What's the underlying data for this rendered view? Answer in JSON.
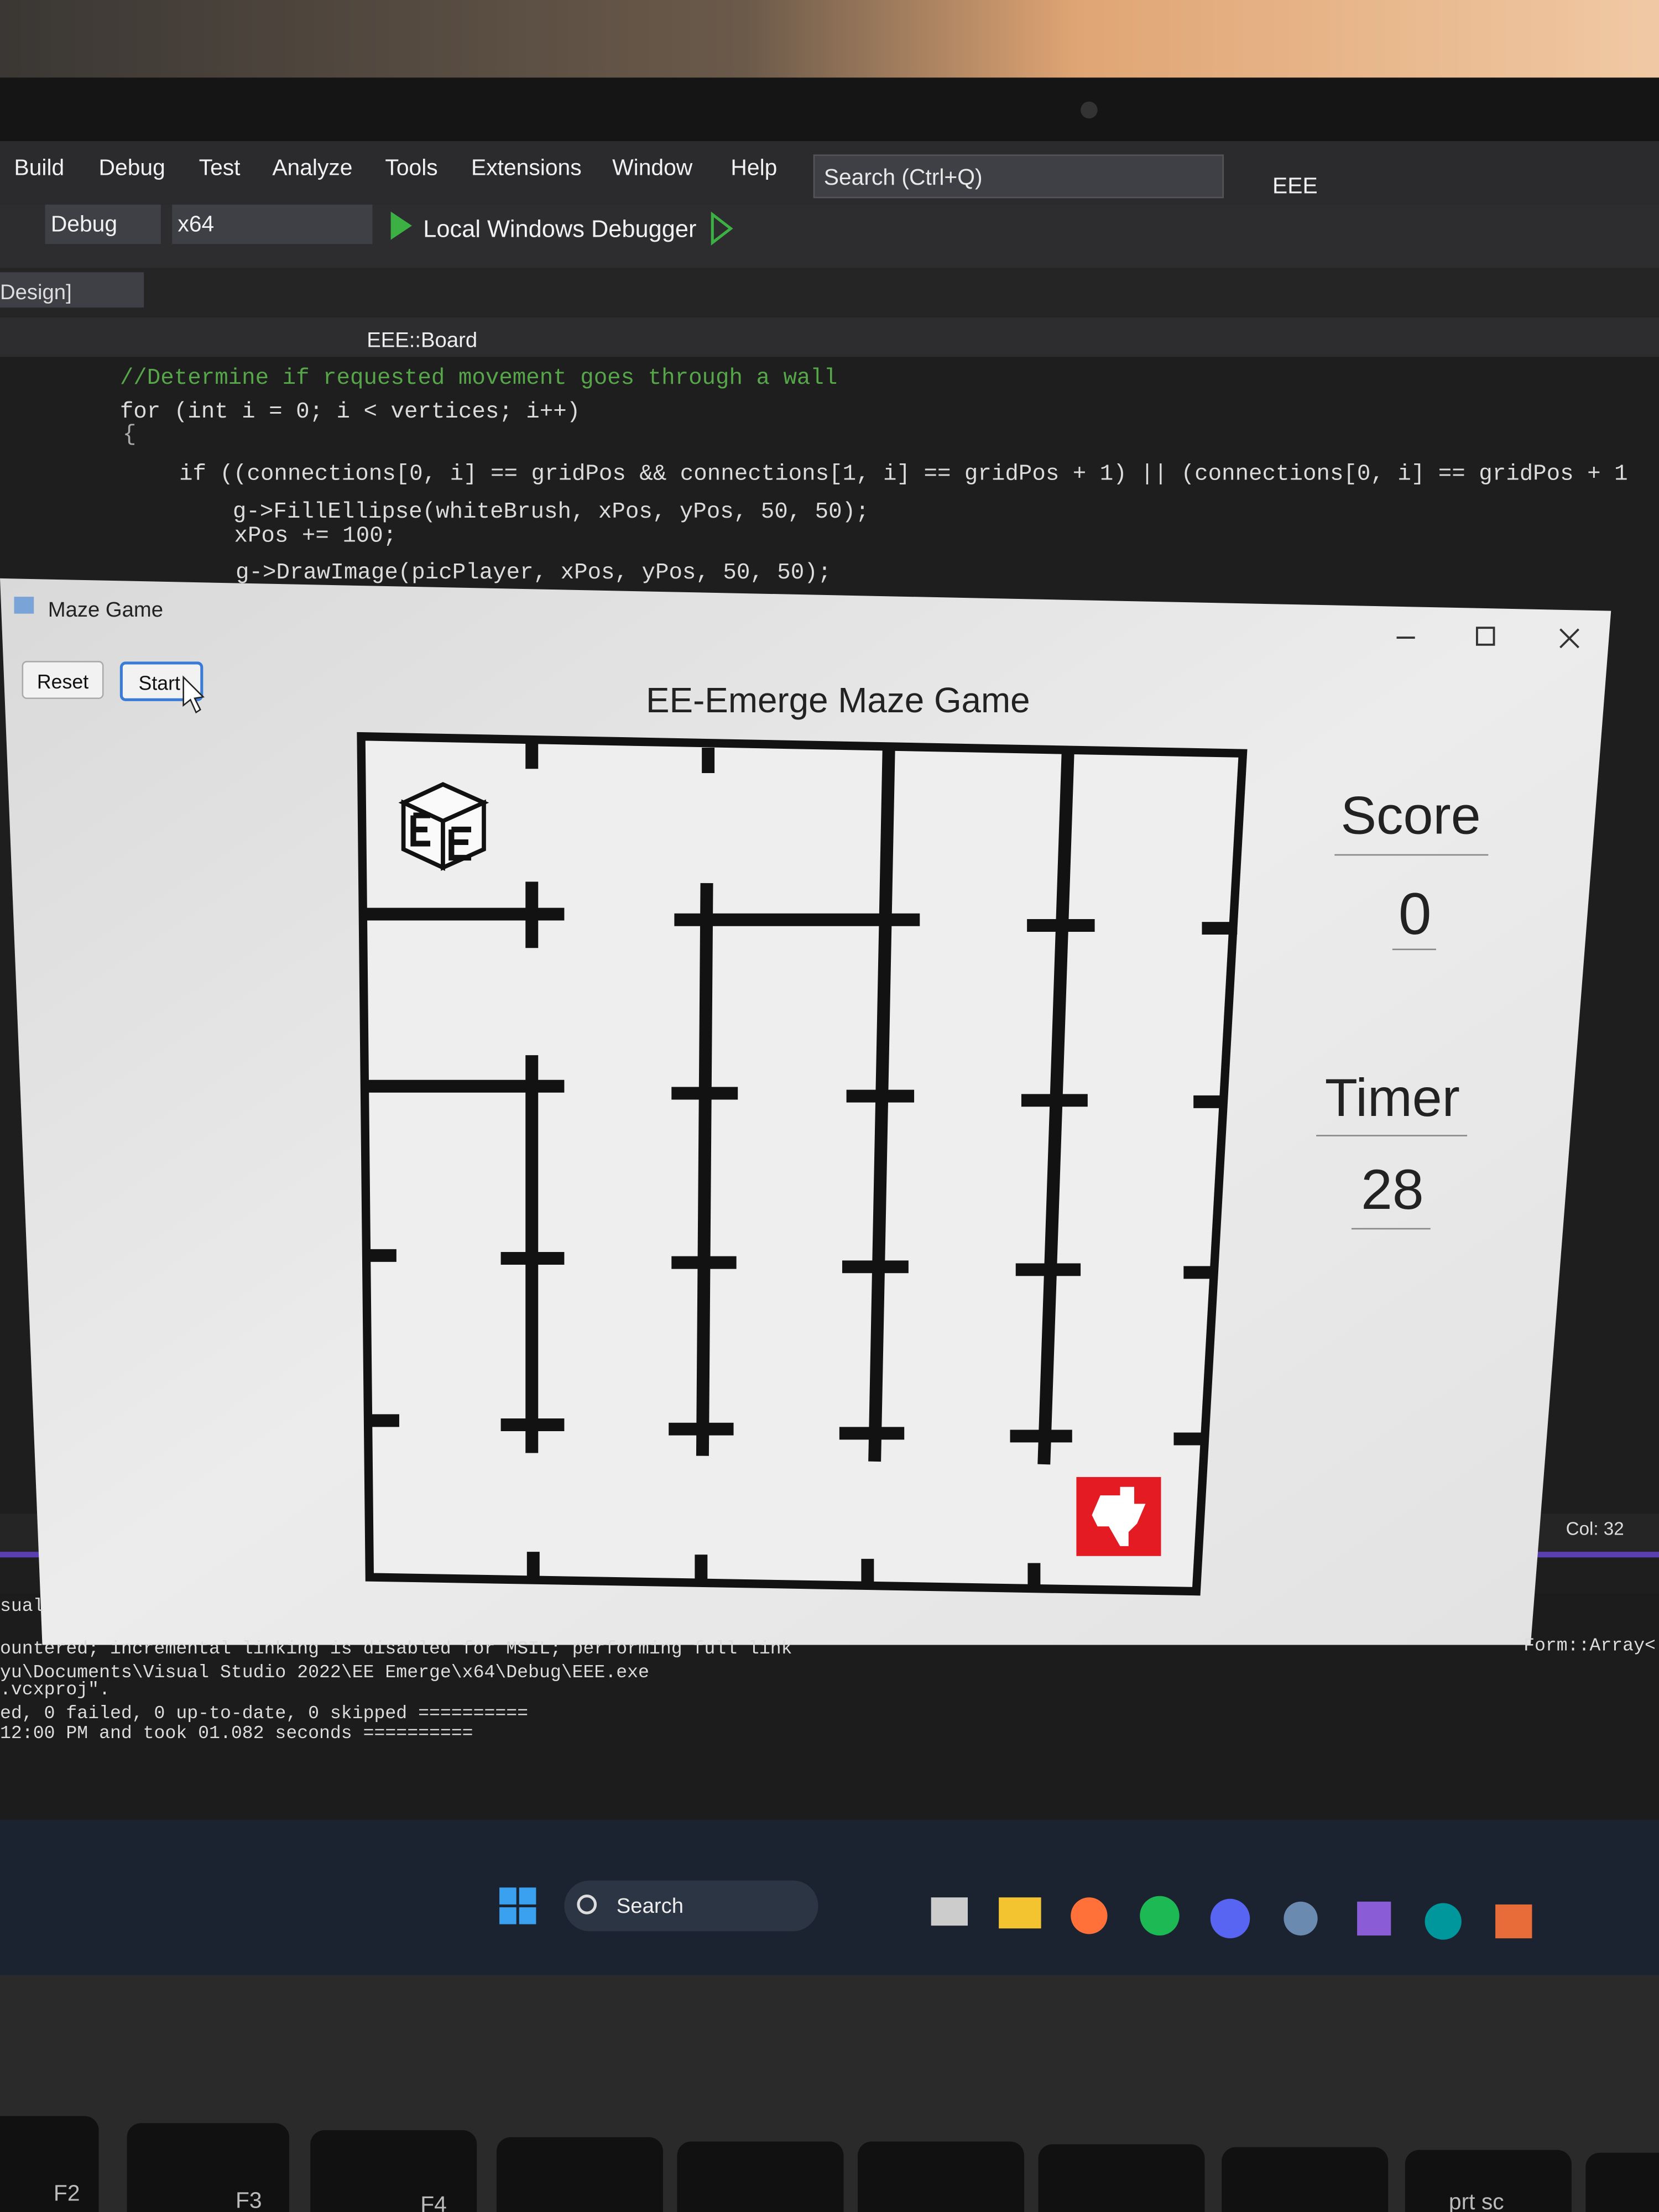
{
  "menu": [
    "Build",
    "Debug",
    "Test",
    "Analyze",
    "Tools",
    "Extensions",
    "Window",
    "Help"
  ],
  "search_box": "Search (Ctrl+Q)",
  "solution_name": "EEE",
  "toolbar": {
    "configuration": "Debug",
    "platform": "x64",
    "debugger": "Local Windows Debugger"
  },
  "tab": "Design]",
  "navigation": "EEE::Board",
  "code": [
    "//Determine if requested movement goes through a wall",
    "for (int i = 0; i < vertices; i++)",
    "{",
    "if ((connections[0, i] == gridPos && connections[1, i] == gridPos + 1) || (connections[0, i] == gridPos + 1",
    "g->FillEllipse(whiteBrush, xPos, yPos, 50, 50);",
    "xPos += 100;",
    "g->DrawImage(picPlayer, xPos, yPos, 50, 50);"
  ],
  "window": {
    "title": "Maze Game",
    "buttons": [
      "Reset",
      "Start"
    ],
    "heading": "EE-Emerge Maze Game",
    "score_label": "Score",
    "score": 0,
    "timer_label": "Timer",
    "timer": 28
  },
  "status": "Col: 32",
  "side_text": "Form::Array<",
  "output": [
    "sual",
    "ountered; incremental linking is disabled for MSIL; performing full link",
    "yu\\Documents\\Visual Studio 2022\\EE Emerge\\x64\\Debug\\EEE.exe",
    ".vcxproj\".",
    "ed, 0 failed, 0 up-to-date, 0 skipped ==========",
    "12:00 PM and took 01.082 seconds =========="
  ],
  "taskbar_search": "Search",
  "keys": [
    "F2",
    "F3",
    "F4",
    "prt sc"
  ]
}
